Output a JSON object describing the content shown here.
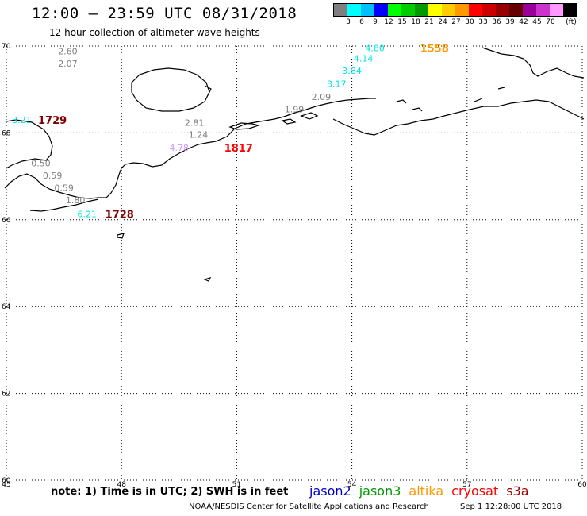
{
  "header": {
    "title": "12:00 — 23:59 UTC 08/31/2018",
    "subtitle": "12 hour collection of altimeter wave heights"
  },
  "legend": {
    "unit": "(ft)",
    "colors": [
      "#7f7f7f",
      "#00ffff",
      "#00bfff",
      "#0000ff",
      "#00ff00",
      "#00cc00",
      "#009900",
      "#ffff00",
      "#ffcc00",
      "#ff9900",
      "#ff0000",
      "#cc0000",
      "#990000",
      "#660000",
      "#990099",
      "#cc33cc",
      "#ff99ff",
      "#000000"
    ],
    "labels": [
      "3",
      "6",
      "9",
      "12",
      "15",
      "18",
      "21",
      "24",
      "27",
      "30",
      "33",
      "36",
      "39",
      "42",
      "45",
      "70"
    ]
  },
  "map": {
    "lon_range": [
      45,
      60
    ],
    "lat_range": [
      60,
      70
    ],
    "lon_ticks": [
      "45",
      "48",
      "51",
      "54",
      "57",
      "60"
    ],
    "lat_ticks": [
      "70",
      "68",
      "66",
      "64",
      "62",
      "60"
    ]
  },
  "observations": [
    {
      "text": "2.60",
      "lon": 46.6,
      "lat": 69.88,
      "color": "#808080"
    },
    {
      "text": "2.07",
      "lon": 46.6,
      "lat": 69.6,
      "color": "#808080"
    },
    {
      "text": "4.80",
      "lon": 54.6,
      "lat": 69.95,
      "color": "#00e5e5"
    },
    {
      "text": "4.14",
      "lon": 54.3,
      "lat": 69.72,
      "color": "#00e5e5"
    },
    {
      "text": "3.84",
      "lon": 54.0,
      "lat": 69.43,
      "color": "#00e5e5"
    },
    {
      "text": "3.17",
      "lon": 53.6,
      "lat": 69.13,
      "color": "#00e5e5"
    },
    {
      "text": "2.09",
      "lon": 53.2,
      "lat": 68.83,
      "color": "#808080"
    },
    {
      "text": "1.99",
      "lon": 52.5,
      "lat": 68.55,
      "color": "#808080"
    },
    {
      "text": "2.81",
      "lon": 49.9,
      "lat": 68.24,
      "color": "#808080"
    },
    {
      "text": "1.24",
      "lon": 50.0,
      "lat": 67.96,
      "color": "#808080"
    },
    {
      "text": "4.78",
      "lon": 49.5,
      "lat": 67.66,
      "color": "#cc99ff"
    },
    {
      "text": "3.21",
      "lon": 45.4,
      "lat": 68.3,
      "color": "#00e5e5"
    },
    {
      "text": "0.50",
      "lon": 45.9,
      "lat": 67.3,
      "color": "#808080"
    },
    {
      "text": "0.59",
      "lon": 46.2,
      "lat": 67.02,
      "color": "#808080"
    },
    {
      "text": "0.59",
      "lon": 46.5,
      "lat": 66.74,
      "color": "#808080"
    },
    {
      "text": "1.80",
      "lon": 46.8,
      "lat": 66.45,
      "color": "#808080"
    },
    {
      "text": "6.21",
      "lon": 47.1,
      "lat": 66.13,
      "color": "#00e5e5"
    }
  ],
  "pass_times": [
    {
      "text": "1558",
      "lon": 56.15,
      "lat": 69.95,
      "color": "#ff9900"
    },
    {
      "text": "1729",
      "lon": 46.2,
      "lat": 68.3,
      "color": "#800000"
    },
    {
      "text": "1817",
      "lon": 51.05,
      "lat": 67.66,
      "color": "#ff0000"
    },
    {
      "text": "1728",
      "lon": 47.95,
      "lat": 66.13,
      "color": "#800000"
    }
  ],
  "footer": {
    "note": "note: 1) Time is in UTC; 2) SWH is in feet",
    "missions": [
      {
        "name": "jason2",
        "color": "#0000cc"
      },
      {
        "name": "jason3",
        "color": "#009900"
      },
      {
        "name": "altika",
        "color": "#ff9900"
      },
      {
        "name": "cryosat",
        "color": "#ff0000"
      },
      {
        "name": "s3a",
        "color": "#990000"
      }
    ],
    "credit": "NOAA/NESDIS Center for Satellite Applications and Research",
    "timestamp": "Sep  1 12:28:00 UTC 2018"
  }
}
